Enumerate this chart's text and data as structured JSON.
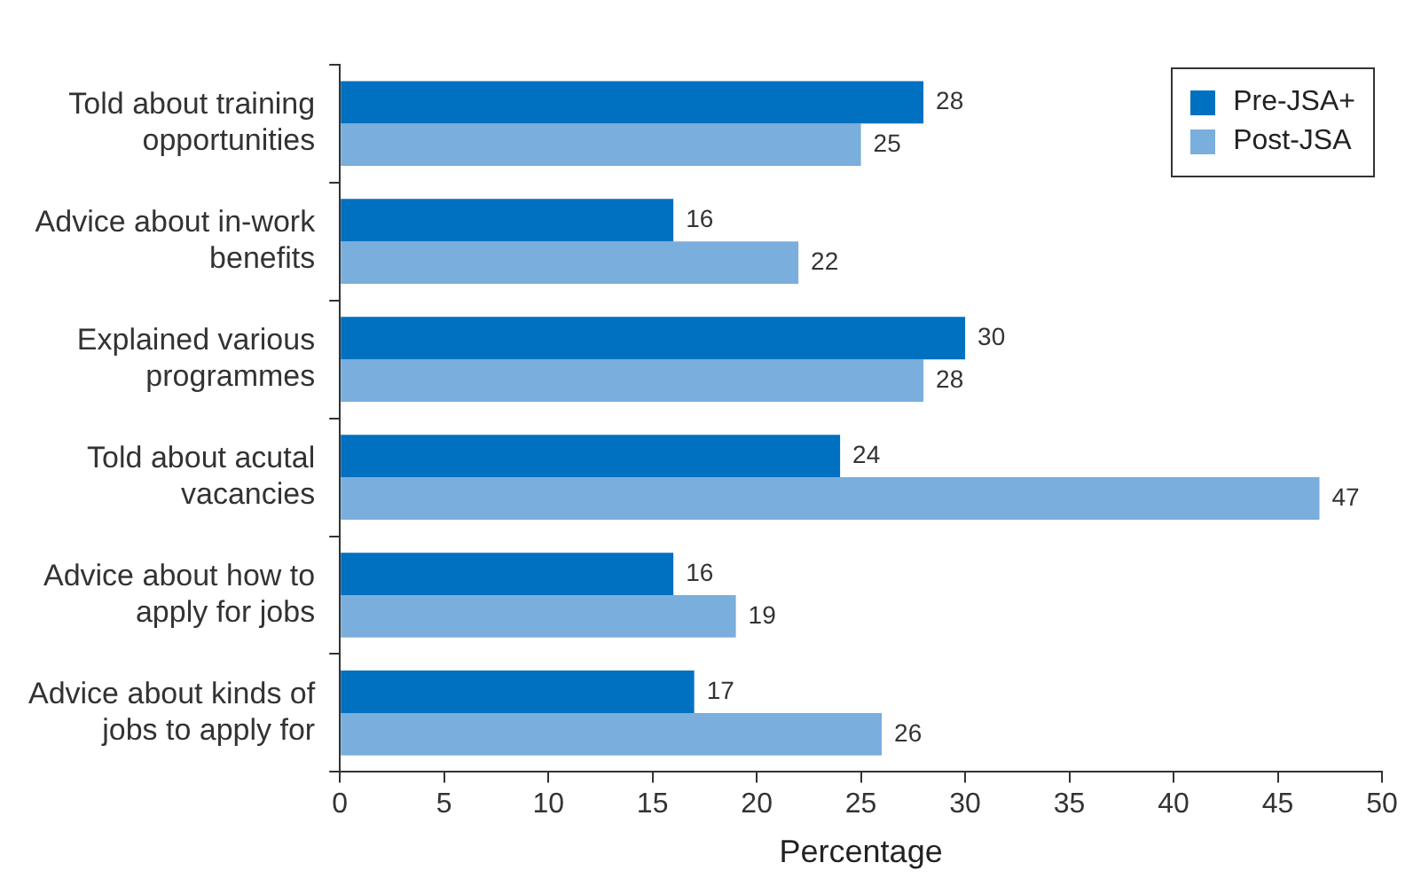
{
  "chart_data": {
    "type": "bar",
    "orientation": "horizontal",
    "xlabel": "Percentage",
    "categories": [
      "Told about training opportunities",
      "Advice about in-work benefits",
      "Explained various programmes",
      "Told about acutal vacancies",
      "Advice about how to apply for jobs",
      "Advice about kinds of jobs to apply for"
    ],
    "series": [
      {
        "name": "Pre-JSA+",
        "color": "#0070c0",
        "values": [
          28,
          16,
          30,
          24,
          16,
          17
        ]
      },
      {
        "name": "Post-JSA",
        "color": "#7aaedc",
        "values": [
          25,
          22,
          28,
          47,
          19,
          26
        ]
      }
    ],
    "xlim": [
      0,
      50
    ],
    "xticks": [
      0,
      5,
      10,
      15,
      20,
      25,
      30,
      35,
      40,
      45,
      50
    ],
    "grid": false,
    "legend": "top right",
    "data_labels": true
  }
}
